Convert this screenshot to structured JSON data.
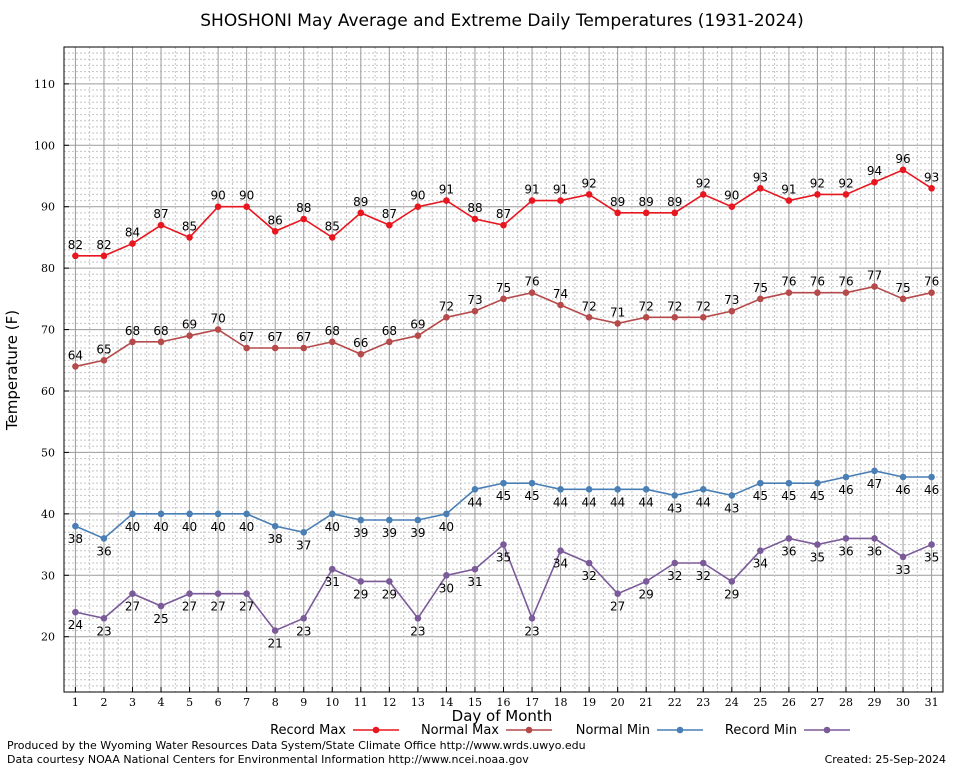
{
  "chart_data": {
    "type": "line",
    "title": "SHOSHONI May Average and Extreme Daily Temperatures (1931-2024)",
    "xlabel": "Day of Month",
    "ylabel": "Temperature (F)",
    "x": [
      1,
      2,
      3,
      4,
      5,
      6,
      7,
      8,
      9,
      10,
      11,
      12,
      13,
      14,
      15,
      16,
      17,
      18,
      19,
      20,
      21,
      22,
      23,
      24,
      25,
      26,
      27,
      28,
      29,
      30,
      31
    ],
    "xlim": [
      0.6,
      31.4
    ],
    "ylim": [
      11,
      116
    ],
    "yticks": [
      20,
      30,
      40,
      50,
      60,
      70,
      80,
      90,
      100,
      110
    ],
    "grid": true,
    "legend_position": "bottom",
    "series": [
      {
        "name": "Record Max",
        "color": "#e8161f",
        "values": [
          82,
          82,
          84,
          87,
          85,
          90,
          90,
          86,
          88,
          85,
          89,
          87,
          90,
          91,
          88,
          87,
          91,
          91,
          92,
          89,
          89,
          89,
          92,
          90,
          93,
          91,
          92,
          92,
          94,
          96,
          93
        ]
      },
      {
        "name": "Normal Max",
        "color": "#b64a4b",
        "values": [
          64,
          65,
          68,
          68,
          69,
          70,
          67,
          67,
          67,
          68,
          66,
          68,
          69,
          72,
          73,
          75,
          76,
          74,
          72,
          71,
          72,
          72,
          72,
          73,
          75,
          76,
          76,
          76,
          77,
          75,
          76
        ]
      },
      {
        "name": "Normal Min",
        "color": "#4a7fb5",
        "values": [
          38,
          36,
          40,
          40,
          40,
          40,
          40,
          38,
          37,
          40,
          39,
          39,
          39,
          40,
          44,
          45,
          45,
          44,
          44,
          44,
          44,
          43,
          44,
          43,
          45,
          45,
          45,
          46,
          47,
          46,
          46
        ]
      },
      {
        "name": "Record Min",
        "color": "#7b5a9a",
        "values": [
          24,
          23,
          27,
          25,
          27,
          27,
          27,
          21,
          23,
          31,
          29,
          29,
          23,
          30,
          31,
          35,
          23,
          34,
          32,
          27,
          29,
          32,
          32,
          29,
          34,
          36,
          35,
          36,
          36,
          33,
          35
        ]
      }
    ]
  },
  "footer": {
    "line1": "Produced by the Wyoming Water Resources Data System/State Climate Office http://www.wrds.uwyo.edu",
    "line2": "Data courtesy NOAA National Centers for Environmental Information http://www.ncei.noaa.gov",
    "created": "Created:  25-Sep-2024"
  }
}
